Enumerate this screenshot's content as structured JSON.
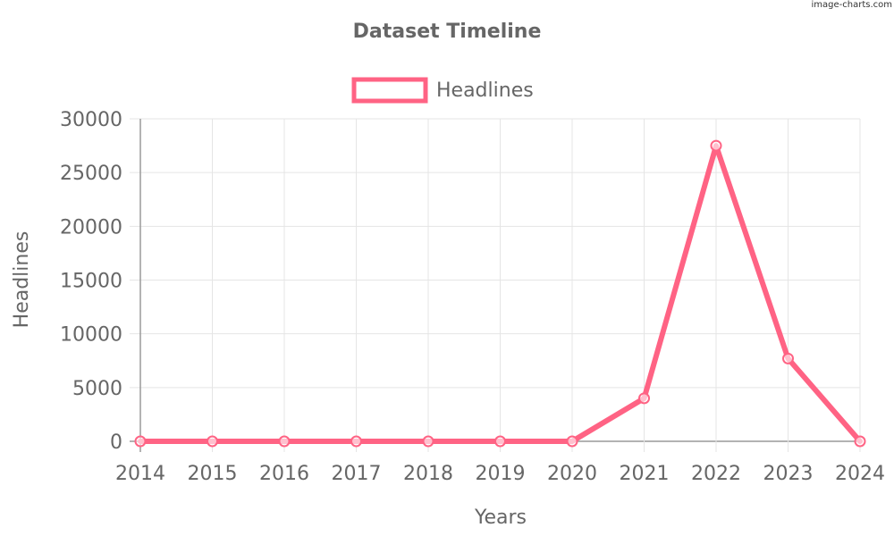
{
  "watermark": "image-charts.com",
  "colors": {
    "series": "#ff6384",
    "text": "#666666",
    "grid": "#e5e5e5",
    "axis": "#9a9a9a",
    "background": "#ffffff"
  },
  "chart_data": {
    "type": "line",
    "title": "Dataset Timeline",
    "xlabel": "Years",
    "ylabel": "Headlines",
    "categories": [
      "2014",
      "2015",
      "2016",
      "2017",
      "2018",
      "2019",
      "2020",
      "2021",
      "2022",
      "2023",
      "2024"
    ],
    "series": [
      {
        "name": "Headlines",
        "values": [
          0,
          0,
          0,
          0,
          0,
          0,
          0,
          4000,
          27500,
          7700,
          0
        ]
      }
    ],
    "ylim": [
      0,
      30000
    ],
    "yticks": [
      "0",
      "5000",
      "10000",
      "15000",
      "20000",
      "25000",
      "30000"
    ],
    "grid": true,
    "legend": "top-center",
    "markers": "hollow-circle"
  }
}
